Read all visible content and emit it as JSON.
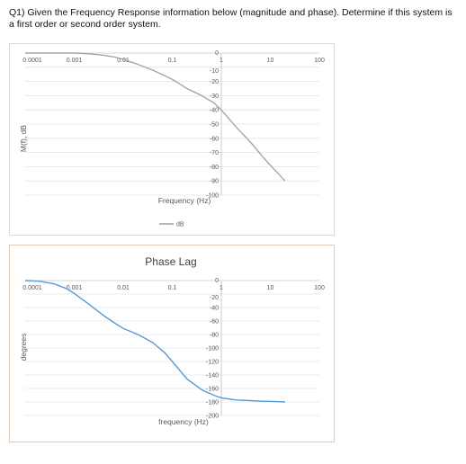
{
  "question": "Q1) Given the Frequency Response information below (magnitude and phase). Determine if this system is a first order or second order system.",
  "chart_data": [
    {
      "type": "line",
      "title": "",
      "xlabel": "Frequency (Hz)",
      "ylabel": "M(f), dB",
      "xscale": "log",
      "xlim": [
        0.0001,
        100
      ],
      "ylim": [
        -100,
        0
      ],
      "x_tick_labels": [
        "0.0001",
        "0.001",
        "0.01",
        "0.1",
        "1",
        "10",
        "100"
      ],
      "y_tick_labels": [
        "0",
        "-10",
        "-20",
        "-30",
        "-40",
        "-50",
        "-60",
        "-70",
        "-80",
        "-90",
        "-100"
      ],
      "grid": true,
      "legend": "bottom",
      "series": [
        {
          "name": "dB",
          "color": "#a5a5a5",
          "x": [
            0.0001,
            0.0003,
            0.001,
            0.002,
            0.004,
            0.007,
            0.01,
            0.02,
            0.04,
            0.07,
            0.1,
            0.2,
            0.4,
            0.7,
            1,
            2,
            4,
            7,
            10,
            20
          ],
          "y": [
            0,
            0,
            0,
            -0.5,
            -1.5,
            -3,
            -4.5,
            -8,
            -12,
            -16,
            -18.5,
            -25,
            -30,
            -35,
            -40,
            -52,
            -63,
            -73,
            -79,
            -90
          ]
        }
      ]
    },
    {
      "type": "line",
      "title": "Phase Lag",
      "xlabel": "frequency (Hz)",
      "ylabel": "degrees",
      "xscale": "log",
      "xlim": [
        0.0001,
        100
      ],
      "ylim": [
        -200,
        0
      ],
      "x_tick_labels": [
        "0.0001",
        "0.001",
        "0.01",
        "0.1",
        "1",
        "10",
        "100"
      ],
      "y_tick_labels": [
        "0",
        "-20",
        "-40",
        "-60",
        "-80",
        "-100",
        "-120",
        "-140",
        "-160",
        "-180",
        "-200"
      ],
      "grid": true,
      "series": [
        {
          "color": "#5b9bd5",
          "x": [
            0.0001,
            0.0002,
            0.0004,
            0.0007,
            0.001,
            0.002,
            0.004,
            0.007,
            0.01,
            0.02,
            0.04,
            0.07,
            0.1,
            0.2,
            0.4,
            0.7,
            1,
            2,
            4,
            7,
            10,
            20
          ],
          "y": [
            0,
            -1,
            -5,
            -12,
            -19,
            -35,
            -52,
            -64,
            -71,
            -80,
            -92,
            -107,
            -120,
            -146,
            -162,
            -170,
            -174,
            -177,
            -178,
            -179,
            -179,
            -180
          ]
        }
      ]
    }
  ]
}
